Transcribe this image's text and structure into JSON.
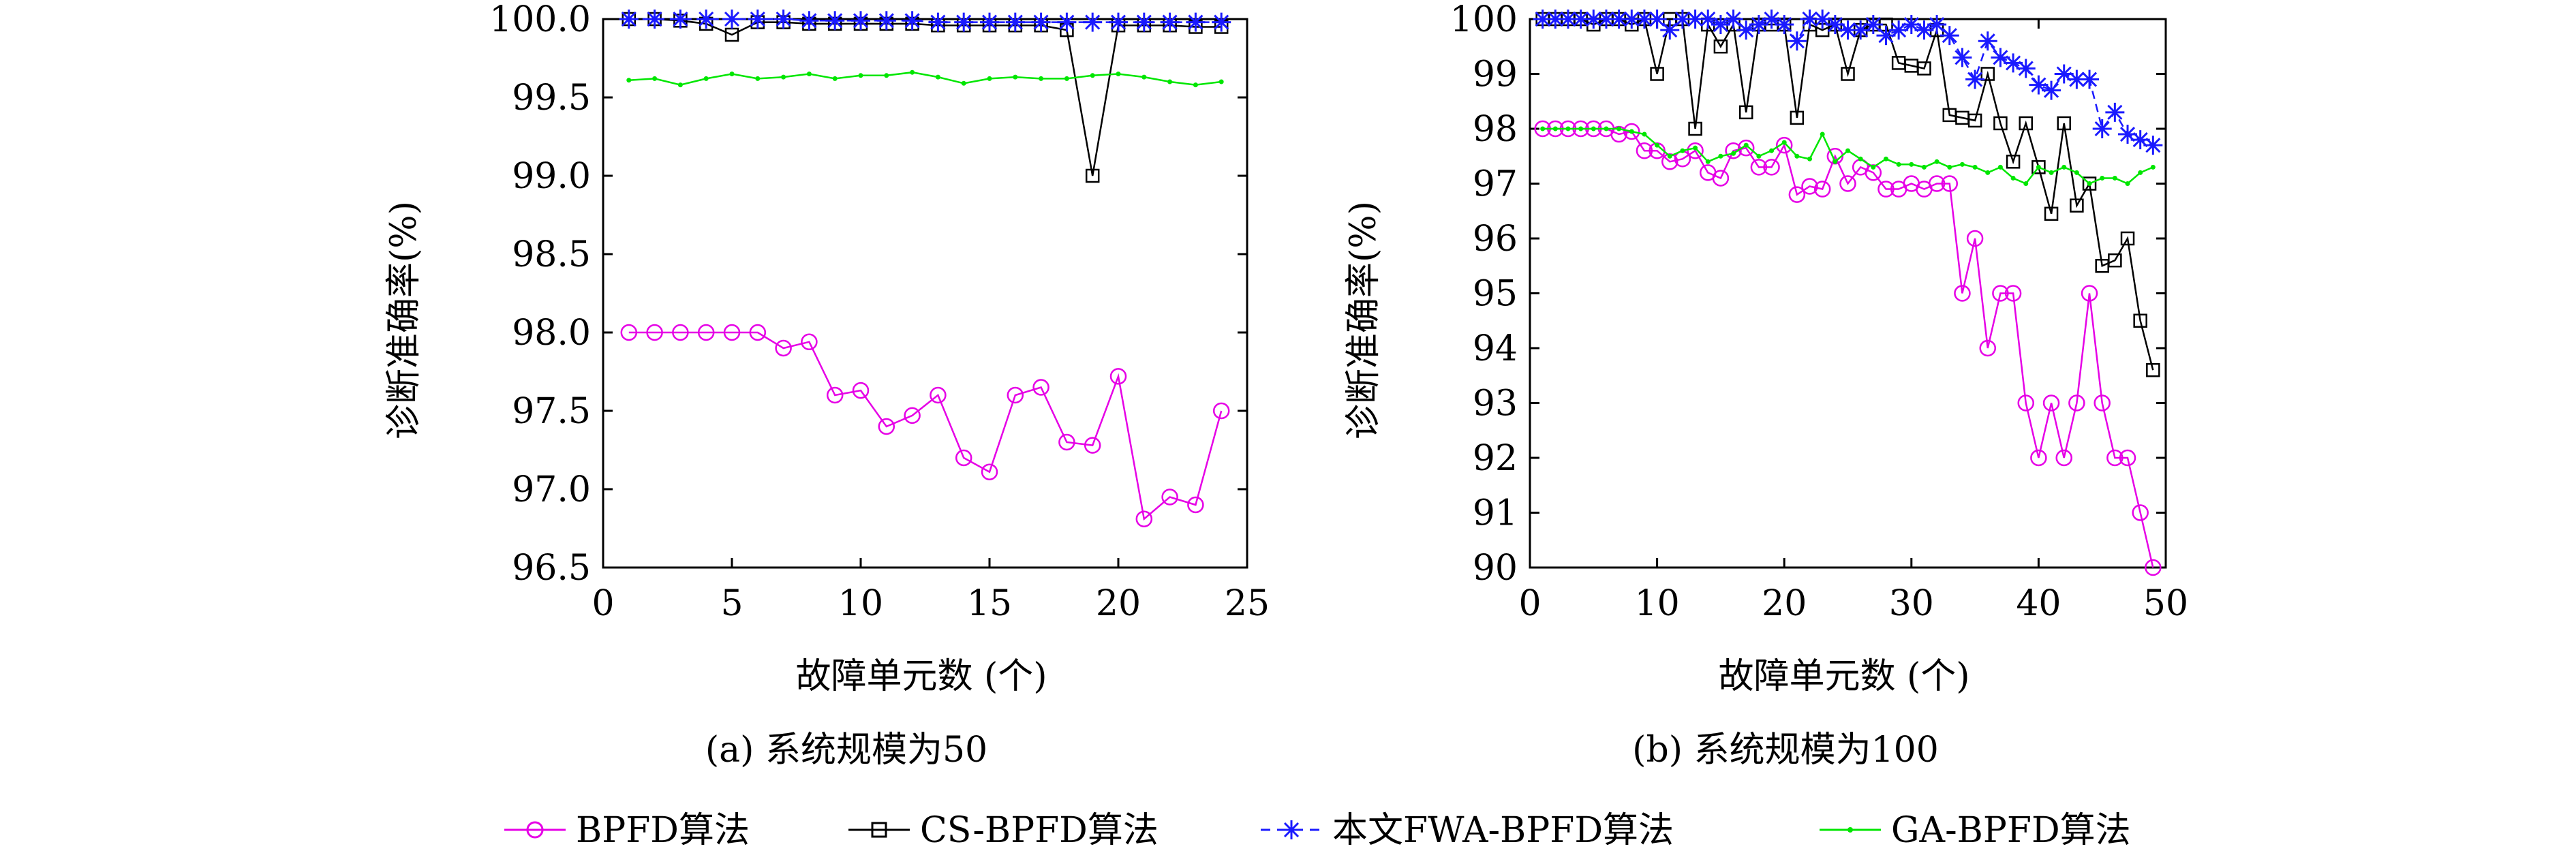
{
  "legend": {
    "entries": [
      {
        "label": "BPFD算法",
        "color": "#e600e6",
        "marker": "circle"
      },
      {
        "label": "CS-BPFD算法",
        "color": "#000000",
        "marker": "square"
      },
      {
        "label": "本文FWA-BPFD算法",
        "color": "#1a1aff",
        "marker": "star"
      },
      {
        "label": "GA-BPFD算法",
        "color": "#00e600",
        "marker": "dot"
      }
    ],
    "placement": "bottom"
  },
  "chart_data": [
    {
      "type": "line",
      "caption": "(a) 系统规模为50",
      "xlabel": "故障单元数 (个)",
      "ylabel": "诊断准确率(%)",
      "xlim": [
        0,
        25
      ],
      "ylim": [
        96.5,
        100.0
      ],
      "xticks": [
        0,
        5,
        10,
        15,
        20,
        25
      ],
      "yticks": [
        96.5,
        97.0,
        97.5,
        98.0,
        98.5,
        99.0,
        99.5,
        100.0
      ],
      "ytick_decimals": 1,
      "x": [
        1,
        2,
        3,
        4,
        5,
        6,
        7,
        8,
        9,
        10,
        11,
        12,
        13,
        14,
        15,
        16,
        17,
        18,
        19,
        20,
        21,
        22,
        23,
        24
      ],
      "series": [
        {
          "name": "BPFD算法",
          "values": [
            98.0,
            98.0,
            98.0,
            98.0,
            98.0,
            98.0,
            97.9,
            97.94,
            97.6,
            97.63,
            97.4,
            97.47,
            97.6,
            97.2,
            97.11,
            97.6,
            97.65,
            97.3,
            97.28,
            97.72,
            96.81,
            96.95,
            96.9,
            97.5
          ]
        },
        {
          "name": "CS-BPFD算法",
          "values": [
            100.0,
            100.0,
            99.99,
            99.97,
            99.9,
            99.98,
            99.98,
            99.97,
            99.97,
            99.97,
            99.97,
            99.97,
            99.96,
            99.96,
            99.96,
            99.96,
            99.96,
            99.93,
            99.0,
            99.96,
            99.96,
            99.96,
            99.95,
            99.95
          ]
        },
        {
          "name": "本文FWA-BPFD算法",
          "values": [
            100.0,
            100.0,
            100.0,
            100.0,
            100.0,
            100.0,
            100.0,
            99.99,
            99.99,
            99.99,
            99.99,
            99.99,
            99.98,
            99.98,
            99.98,
            99.98,
            99.98,
            99.98,
            99.98,
            99.98,
            99.98,
            99.98,
            99.98,
            99.98
          ]
        },
        {
          "name": "GA-BPFD算法",
          "values": [
            99.61,
            99.62,
            99.58,
            99.62,
            99.65,
            99.62,
            99.63,
            99.65,
            99.62,
            99.64,
            99.64,
            99.66,
            99.63,
            99.59,
            99.62,
            99.63,
            99.62,
            99.62,
            99.64,
            99.65,
            99.63,
            99.6,
            99.58,
            99.6
          ]
        }
      ]
    },
    {
      "type": "line",
      "caption": "(b) 系统规模为100",
      "xlabel": "故障单元数 (个)",
      "ylabel": "诊断准确率(%)",
      "xlim": [
        0,
        50
      ],
      "ylim": [
        90,
        100
      ],
      "xticks": [
        0,
        10,
        20,
        30,
        40,
        50
      ],
      "yticks": [
        90,
        91,
        92,
        93,
        94,
        95,
        96,
        97,
        98,
        99,
        100
      ],
      "ytick_decimals": 0,
      "x": [
        1,
        2,
        3,
        4,
        5,
        6,
        7,
        8,
        9,
        10,
        11,
        12,
        13,
        14,
        15,
        16,
        17,
        18,
        19,
        20,
        21,
        22,
        23,
        24,
        25,
        26,
        27,
        28,
        29,
        30,
        31,
        32,
        33,
        34,
        35,
        36,
        37,
        38,
        39,
        40,
        41,
        42,
        43,
        44,
        45,
        46,
        47,
        48,
        49
      ],
      "series": [
        {
          "name": "BPFD算法",
          "values": [
            98.0,
            98.0,
            98.0,
            98.0,
            98.0,
            98.0,
            97.9,
            97.95,
            97.6,
            97.6,
            97.4,
            97.45,
            97.6,
            97.2,
            97.1,
            97.6,
            97.65,
            97.3,
            97.3,
            97.7,
            96.8,
            96.95,
            96.9,
            97.5,
            97.0,
            97.3,
            97.2,
            96.9,
            96.9,
            97.0,
            96.9,
            97.0,
            97.0,
            95.0,
            96.0,
            94.0,
            95.0,
            95.0,
            93.0,
            92.0,
            93.0,
            92.0,
            93.0,
            95.0,
            93.0,
            92.0,
            92.0,
            91.0,
            90.0
          ]
        },
        {
          "name": "CS-BPFD算法",
          "values": [
            100.0,
            100.0,
            100.0,
            100.0,
            99.9,
            100.0,
            100.0,
            99.9,
            100.0,
            99.0,
            100.0,
            100.0,
            98.0,
            99.9,
            99.5,
            99.9,
            98.3,
            99.9,
            99.9,
            99.9,
            98.2,
            99.9,
            99.8,
            99.9,
            99.0,
            99.8,
            99.9,
            99.9,
            99.2,
            99.15,
            99.1,
            99.8,
            98.25,
            98.2,
            98.15,
            99.0,
            98.1,
            97.4,
            98.1,
            97.3,
            96.45,
            98.1,
            96.6,
            97.0,
            95.5,
            95.6,
            96.0,
            94.5,
            93.6
          ]
        },
        {
          "name": "本文FWA-BPFD算法",
          "values": [
            100.0,
            100.0,
            100.0,
            100.0,
            100.0,
            100.0,
            100.0,
            100.0,
            100.0,
            100.0,
            99.8,
            100.0,
            100.0,
            100.0,
            99.9,
            100.0,
            99.8,
            99.9,
            100.0,
            99.9,
            99.6,
            100.0,
            100.0,
            99.9,
            99.8,
            99.8,
            99.9,
            99.7,
            99.8,
            99.9,
            99.8,
            99.9,
            99.7,
            99.3,
            98.9,
            99.6,
            99.3,
            99.2,
            99.1,
            98.8,
            98.7,
            99.0,
            98.9,
            98.9,
            98.0,
            98.3,
            97.9,
            97.8,
            97.7
          ]
        },
        {
          "name": "GA-BPFD算法",
          "values": [
            98.0,
            98.0,
            98.0,
            98.0,
            98.0,
            98.0,
            98.0,
            97.95,
            97.9,
            97.7,
            97.5,
            97.6,
            97.65,
            97.4,
            97.5,
            97.55,
            97.7,
            97.5,
            97.6,
            97.75,
            97.5,
            97.45,
            97.9,
            97.4,
            97.6,
            97.45,
            97.3,
            97.45,
            97.35,
            97.35,
            97.3,
            97.4,
            97.3,
            97.35,
            97.3,
            97.2,
            97.3,
            97.1,
            97.0,
            97.3,
            97.2,
            97.3,
            97.2,
            97.0,
            97.1,
            97.1,
            97.0,
            97.2,
            97.3
          ]
        }
      ]
    }
  ]
}
